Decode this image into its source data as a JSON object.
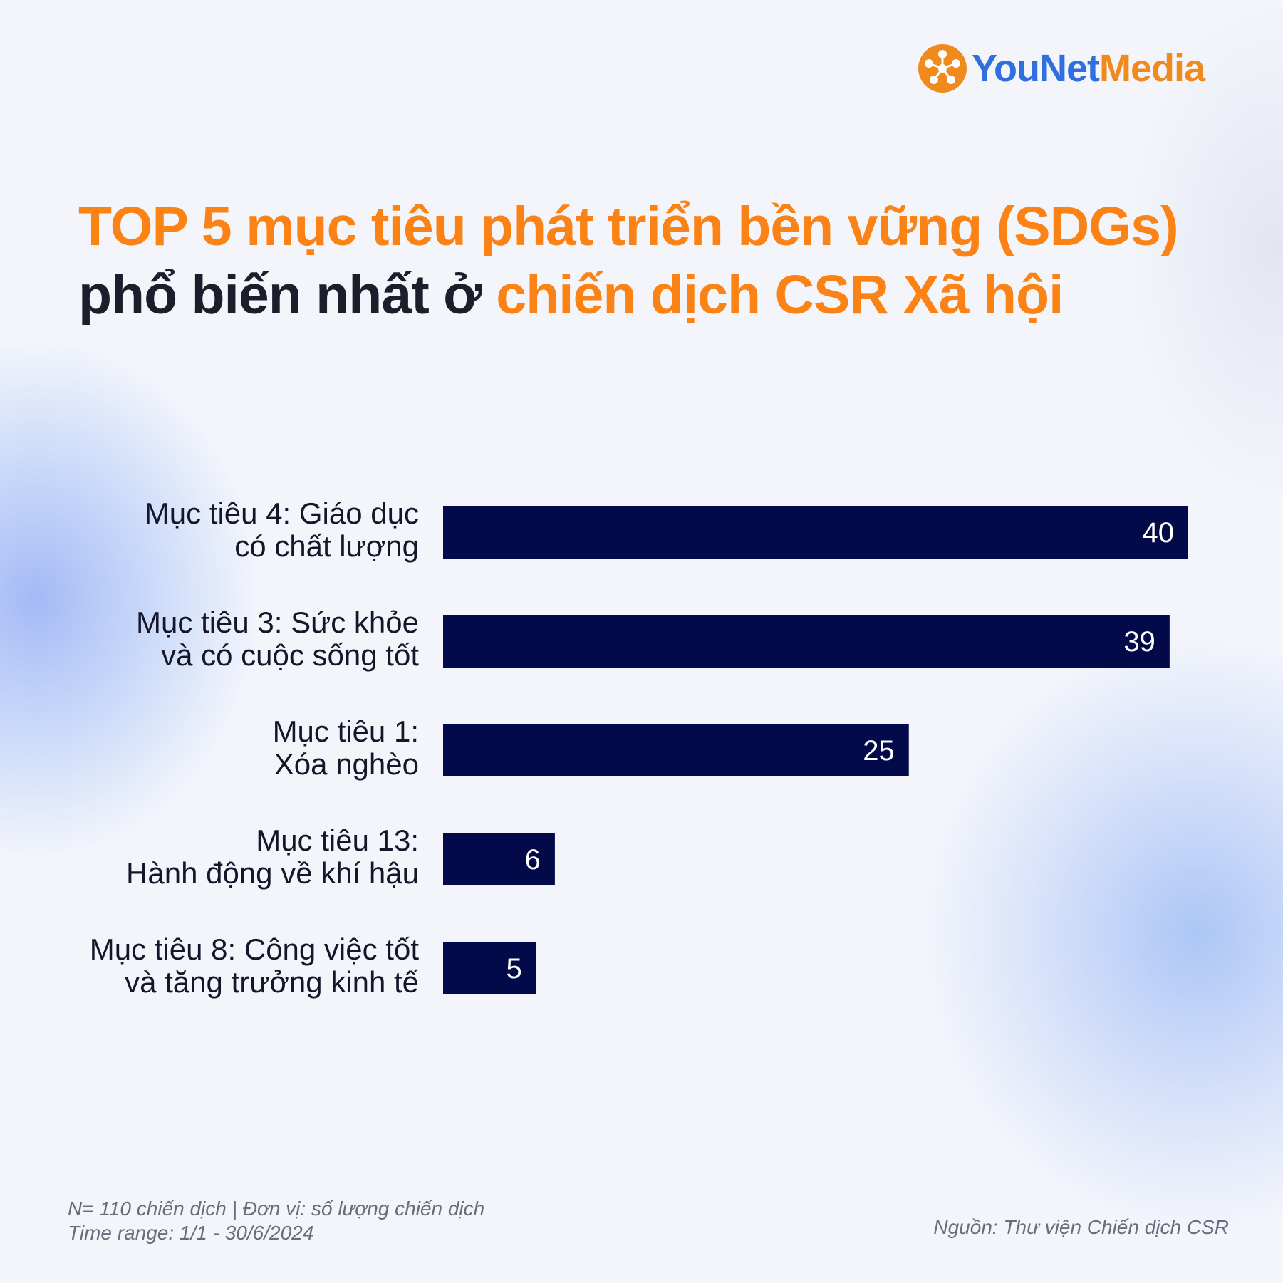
{
  "brand": {
    "name_part1": "YouNet",
    "name_part2_initial": "M",
    "name_part2_rest": "edia",
    "logo_icon": "younet-hub-icon",
    "color_blue": "#2f6fe0",
    "color_orange": "#f08a1d"
  },
  "title": {
    "part1": "TOP 5 mục tiêu phát triển bền vững (SDGs)",
    "part2": " phổ biến nhất ở ",
    "part3": "chiến dịch CSR Xã hội"
  },
  "chart_data": {
    "type": "bar",
    "orientation": "horizontal",
    "categories": [
      [
        "Mục tiêu 4: Giáo dục",
        "có chất lượng"
      ],
      [
        "Mục tiêu 3: Sức khỏe",
        "và có cuộc sống tốt"
      ],
      [
        "Mục tiêu 1:",
        "Xóa nghèo"
      ],
      [
        "Mục tiêu 13:",
        "Hành động về khí hậu"
      ],
      [
        "Mục tiêu 8: Công việc tốt",
        "và tăng trưởng kinh tế"
      ]
    ],
    "values": [
      40,
      39,
      25,
      6,
      5
    ],
    "value_labels": [
      "40",
      "39",
      "25",
      "6",
      "5"
    ],
    "xlim": [
      0,
      40
    ],
    "bar_color": "#020a4a",
    "grid": false,
    "legend": "none"
  },
  "footnotes": {
    "sample": "N= 110 chiến dịch | Đơn vị: số lượng chiến dịch",
    "time_range": "Time range: 1/1 - 30/6/2024",
    "source": "Nguồn: Thư viện Chiến dịch CSR"
  }
}
